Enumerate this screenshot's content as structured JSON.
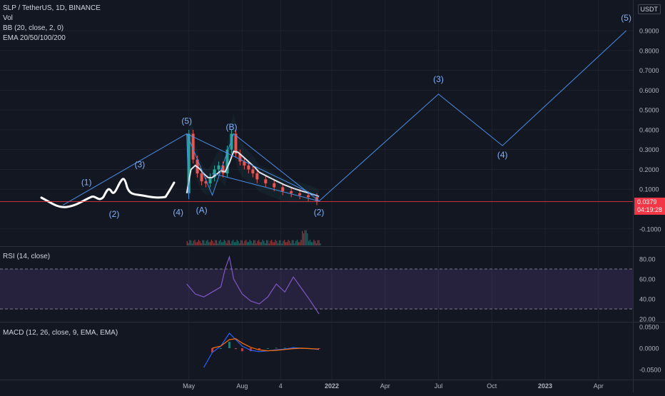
{
  "legend": {
    "symbol": "SLP / TetherUS, 1D, BINANCE",
    "volume": "Vol",
    "bb": "BB (20, close, 2, 0)",
    "ema": "EMA 20/50/100/200"
  },
  "currency_label": "USDT",
  "last_price": {
    "value": "0.0379",
    "countdown": "04:19:28"
  },
  "colors": {
    "background": "#131722",
    "grid": "#1e222d",
    "wave_line": "#4a8fe7",
    "price_line": "#f23645",
    "rsi_band": "#7e57c2",
    "rsi_line": "#7e57c2",
    "macd_line": "#2962ff",
    "signal_line": "#ff6d00",
    "drawing": "#ffffff",
    "bb_band": "#26a69a"
  },
  "chart_data": [
    {
      "type": "line",
      "title": "SLP / TetherUS, 1D, BINANCE",
      "pane": "price",
      "y_ticks": [
        "0.9000",
        "0.8000",
        "0.7000",
        "0.6000",
        "0.5000",
        "0.4000",
        "0.3000",
        "0.2000",
        "0.1000",
        "-0.1000"
      ],
      "ylim": [
        -0.13,
        0.97
      ],
      "x_ticks": [
        "May",
        "Aug",
        "4",
        "2022",
        "Apr",
        "Jul",
        "Oct",
        "2023",
        "Apr"
      ],
      "price_series": {
        "t": [
          2021.32,
          2021.34,
          2021.36,
          2021.38,
          2021.4,
          2021.42,
          2021.44,
          2021.46,
          2021.48,
          2021.5,
          2021.52,
          2021.54,
          2021.56,
          2021.58,
          2021.6,
          2021.62,
          2021.64,
          2021.66,
          2021.7,
          2021.74,
          2021.78,
          2021.82,
          2021.86,
          2021.9,
          2021.94
        ],
        "close": [
          0.08,
          0.38,
          0.25,
          0.18,
          0.14,
          0.13,
          0.16,
          0.2,
          0.22,
          0.18,
          0.3,
          0.38,
          0.28,
          0.24,
          0.22,
          0.2,
          0.18,
          0.15,
          0.13,
          0.11,
          0.09,
          0.08,
          0.07,
          0.06,
          0.04
        ]
      },
      "wave_path": [
        {
          "t": 2020.74,
          "v": 0.02
        },
        {
          "t": 2021.32,
          "v": 0.38
        },
        {
          "t": 2021.44,
          "v": 0.07
        },
        {
          "t": 2021.54,
          "v": 0.38
        },
        {
          "t": 2021.94,
          "v": 0.04
        },
        {
          "t": 2022.5,
          "v": 0.58
        },
        {
          "t": 2022.8,
          "v": 0.32
        },
        {
          "t": 2023.38,
          "v": 0.9
        }
      ],
      "wave_labels": [
        {
          "text": "(1)",
          "t": 2020.85,
          "v": 0.12
        },
        {
          "text": "(2)",
          "t": 2020.98,
          "v": -0.04
        },
        {
          "text": "(3)",
          "t": 2021.1,
          "v": 0.21
        },
        {
          "text": "(4)",
          "t": 2021.28,
          "v": -0.03
        },
        {
          "text": "(5)",
          "t": 2021.32,
          "v": 0.43
        },
        {
          "text": "(A)",
          "t": 2021.39,
          "v": -0.02
        },
        {
          "text": "(B)",
          "t": 2021.53,
          "v": 0.4
        },
        {
          "text": "(2)",
          "t": 2021.94,
          "v": -0.03
        },
        {
          "text": "(3)",
          "t": 2022.5,
          "v": 0.64
        },
        {
          "text": "(4)",
          "t": 2022.8,
          "v": 0.26
        },
        {
          "text": "(5)",
          "t": 2023.38,
          "v": 0.95
        }
      ],
      "last_price": 0.0379
    },
    {
      "type": "line",
      "title": "RSI (14, close)",
      "pane": "rsi",
      "y_ticks": [
        "80.00",
        "60.00",
        "40.00",
        "20.00"
      ],
      "ylim": [
        18,
        88
      ],
      "band": [
        30,
        70
      ],
      "series": {
        "t": [
          2021.32,
          2021.36,
          2021.4,
          2021.44,
          2021.48,
          2021.5,
          2021.52,
          2021.54,
          2021.58,
          2021.62,
          2021.66,
          2021.7,
          2021.74,
          2021.78,
          2021.82,
          2021.86,
          2021.9,
          2021.94
        ],
        "values": [
          55,
          45,
          42,
          47,
          52,
          70,
          82,
          60,
          45,
          38,
          35,
          42,
          55,
          47,
          62,
          50,
          38,
          25
        ]
      }
    },
    {
      "type": "line",
      "title": "MACD (12, 26, close, 9, EMA, EMA)",
      "pane": "macd",
      "y_ticks": [
        "0.0500",
        "0.0000",
        "-0.0500"
      ],
      "ylim": [
        -0.058,
        0.058
      ],
      "macd": {
        "t": [
          2021.4,
          2021.44,
          2021.48,
          2021.52,
          2021.55,
          2021.58,
          2021.62,
          2021.66,
          2021.7,
          2021.74,
          2021.78,
          2021.82,
          2021.86,
          2021.9,
          2021.94
        ],
        "values": [
          -0.045,
          -0.01,
          0.005,
          0.035,
          0.02,
          0.005,
          -0.005,
          -0.008,
          -0.006,
          -0.004,
          -0.002,
          0.001,
          0.0,
          -0.001,
          -0.003
        ]
      },
      "signal": {
        "t": [
          2021.44,
          2021.48,
          2021.52,
          2021.55,
          2021.58,
          2021.62,
          2021.66,
          2021.7,
          2021.74,
          2021.78,
          2021.82,
          2021.86,
          2021.9,
          2021.94
        ],
        "values": [
          0.0,
          0.005,
          0.02,
          0.022,
          0.012,
          0.002,
          -0.004,
          -0.006,
          -0.005,
          -0.003,
          -0.001,
          0.0,
          -0.001,
          -0.002
        ]
      }
    }
  ]
}
